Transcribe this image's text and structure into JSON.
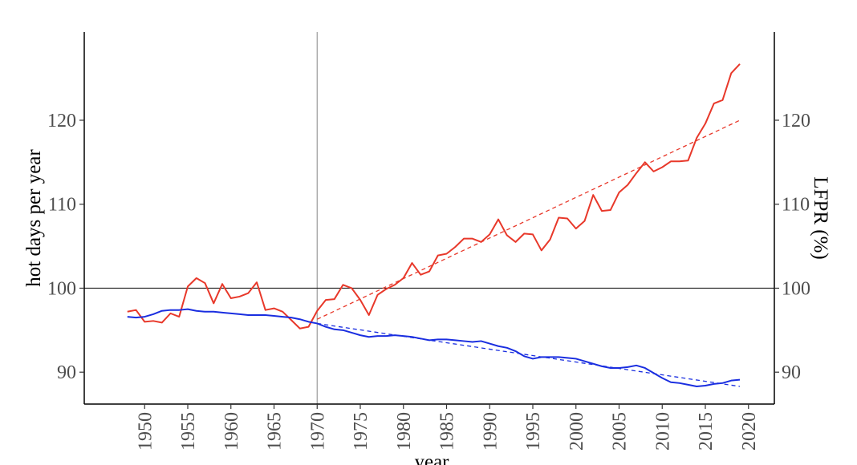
{
  "chart_data": {
    "type": "line",
    "title": "",
    "xlabel": "year",
    "ylabel": "hot days per year",
    "y2label": "LFPR (%)",
    "xlim": [
      1943,
      2023
    ],
    "ylim": [
      86.2,
      130.5
    ],
    "y2lim": [
      86.2,
      130.5
    ],
    "x_ticks": [
      1950,
      1955,
      1960,
      1965,
      1970,
      1975,
      1980,
      1985,
      1990,
      1995,
      2000,
      2005,
      2010,
      2015,
      2020
    ],
    "y_ticks": [
      90,
      100,
      110,
      120
    ],
    "y2_ticks": [
      90,
      100,
      110,
      120
    ],
    "reference_lines": {
      "vertical_x": 1970,
      "horizontal_y": 100
    },
    "grid": false,
    "legend": "none",
    "series": [
      {
        "color": "#e8382a",
        "axis": "left",
        "x": [
          1948,
          1949,
          1950,
          1951,
          1952,
          1953,
          1954,
          1955,
          1956,
          1957,
          1958,
          1959,
          1960,
          1961,
          1962,
          1963,
          1964,
          1965,
          1966,
          1967,
          1968,
          1969,
          1970,
          1971,
          1972,
          1973,
          1974,
          1975,
          1976,
          1977,
          1978,
          1979,
          1980,
          1981,
          1982,
          1983,
          1984,
          1985,
          1986,
          1987,
          1988,
          1989,
          1990,
          1991,
          1992,
          1993,
          1994,
          1995,
          1996,
          1997,
          1998,
          1999,
          2000,
          2001,
          2002,
          2003,
          2004,
          2005,
          2006,
          2007,
          2008,
          2009,
          2010,
          2011,
          2012,
          2013,
          2014,
          2015,
          2016,
          2017,
          2018,
          2019
        ],
        "values": [
          97.2,
          97.4,
          96.0,
          96.1,
          95.9,
          97.0,
          96.6,
          100.2,
          101.2,
          100.6,
          98.2,
          100.5,
          98.8,
          99.0,
          99.4,
          100.7,
          97.4,
          97.6,
          97.2,
          96.2,
          95.2,
          95.4,
          97.3,
          98.6,
          98.7,
          100.4,
          100.0,
          98.6,
          96.8,
          99.2,
          99.9,
          100.4,
          101.2,
          103.0,
          101.6,
          102.0,
          103.9,
          104.1,
          104.9,
          105.9,
          105.9,
          105.5,
          106.4,
          108.2,
          106.3,
          105.5,
          106.5,
          106.4,
          104.5,
          105.8,
          108.4,
          108.3,
          107.1,
          108.0,
          111.1,
          109.2,
          109.3,
          111.4,
          112.3,
          113.7,
          115.0,
          113.9,
          114.4,
          115.1,
          115.1,
          115.2,
          117.9,
          119.6,
          122.0,
          122.4,
          125.6,
          126.7
        ]
      },
      {
        "color": "#e8382a",
        "axis": "left",
        "style": "dashed",
        "x": [
          1970,
          2019
        ],
        "values": [
          96.3,
          120.0
        ]
      },
      {
        "color": "#1a2ee0",
        "axis": "right",
        "x": [
          1948,
          1949,
          1950,
          1951,
          1952,
          1953,
          1954,
          1955,
          1956,
          1957,
          1958,
          1959,
          1960,
          1961,
          1962,
          1963,
          1964,
          1965,
          1966,
          1967,
          1968,
          1969,
          1970,
          1971,
          1972,
          1973,
          1974,
          1975,
          1976,
          1977,
          1978,
          1979,
          1980,
          1981,
          1982,
          1983,
          1984,
          1985,
          1986,
          1987,
          1988,
          1989,
          1990,
          1991,
          1992,
          1993,
          1994,
          1995,
          1996,
          1997,
          1998,
          1999,
          2000,
          2001,
          2002,
          2003,
          2004,
          2005,
          2006,
          2007,
          2008,
          2009,
          2010,
          2011,
          2012,
          2013,
          2014,
          2015,
          2016,
          2017,
          2018,
          2019
        ],
        "values": [
          96.6,
          96.5,
          96.6,
          96.9,
          97.3,
          97.4,
          97.4,
          97.5,
          97.3,
          97.2,
          97.2,
          97.1,
          97.0,
          96.9,
          96.8,
          96.8,
          96.8,
          96.7,
          96.6,
          96.5,
          96.3,
          96.0,
          95.8,
          95.4,
          95.1,
          95.0,
          94.7,
          94.4,
          94.2,
          94.3,
          94.3,
          94.4,
          94.3,
          94.2,
          94.0,
          93.8,
          93.9,
          93.9,
          93.8,
          93.7,
          93.6,
          93.7,
          93.4,
          93.1,
          92.9,
          92.5,
          91.9,
          91.6,
          91.8,
          91.8,
          91.8,
          91.7,
          91.6,
          91.3,
          91.0,
          90.7,
          90.5,
          90.5,
          90.6,
          90.8,
          90.5,
          89.9,
          89.3,
          88.8,
          88.7,
          88.5,
          88.3,
          88.4,
          88.6,
          88.7,
          89.0,
          89.1
        ]
      },
      {
        "color": "#1a2ee0",
        "axis": "right",
        "style": "dashed",
        "x": [
          1970,
          2019
        ],
        "values": [
          95.8,
          88.3
        ]
      }
    ]
  }
}
